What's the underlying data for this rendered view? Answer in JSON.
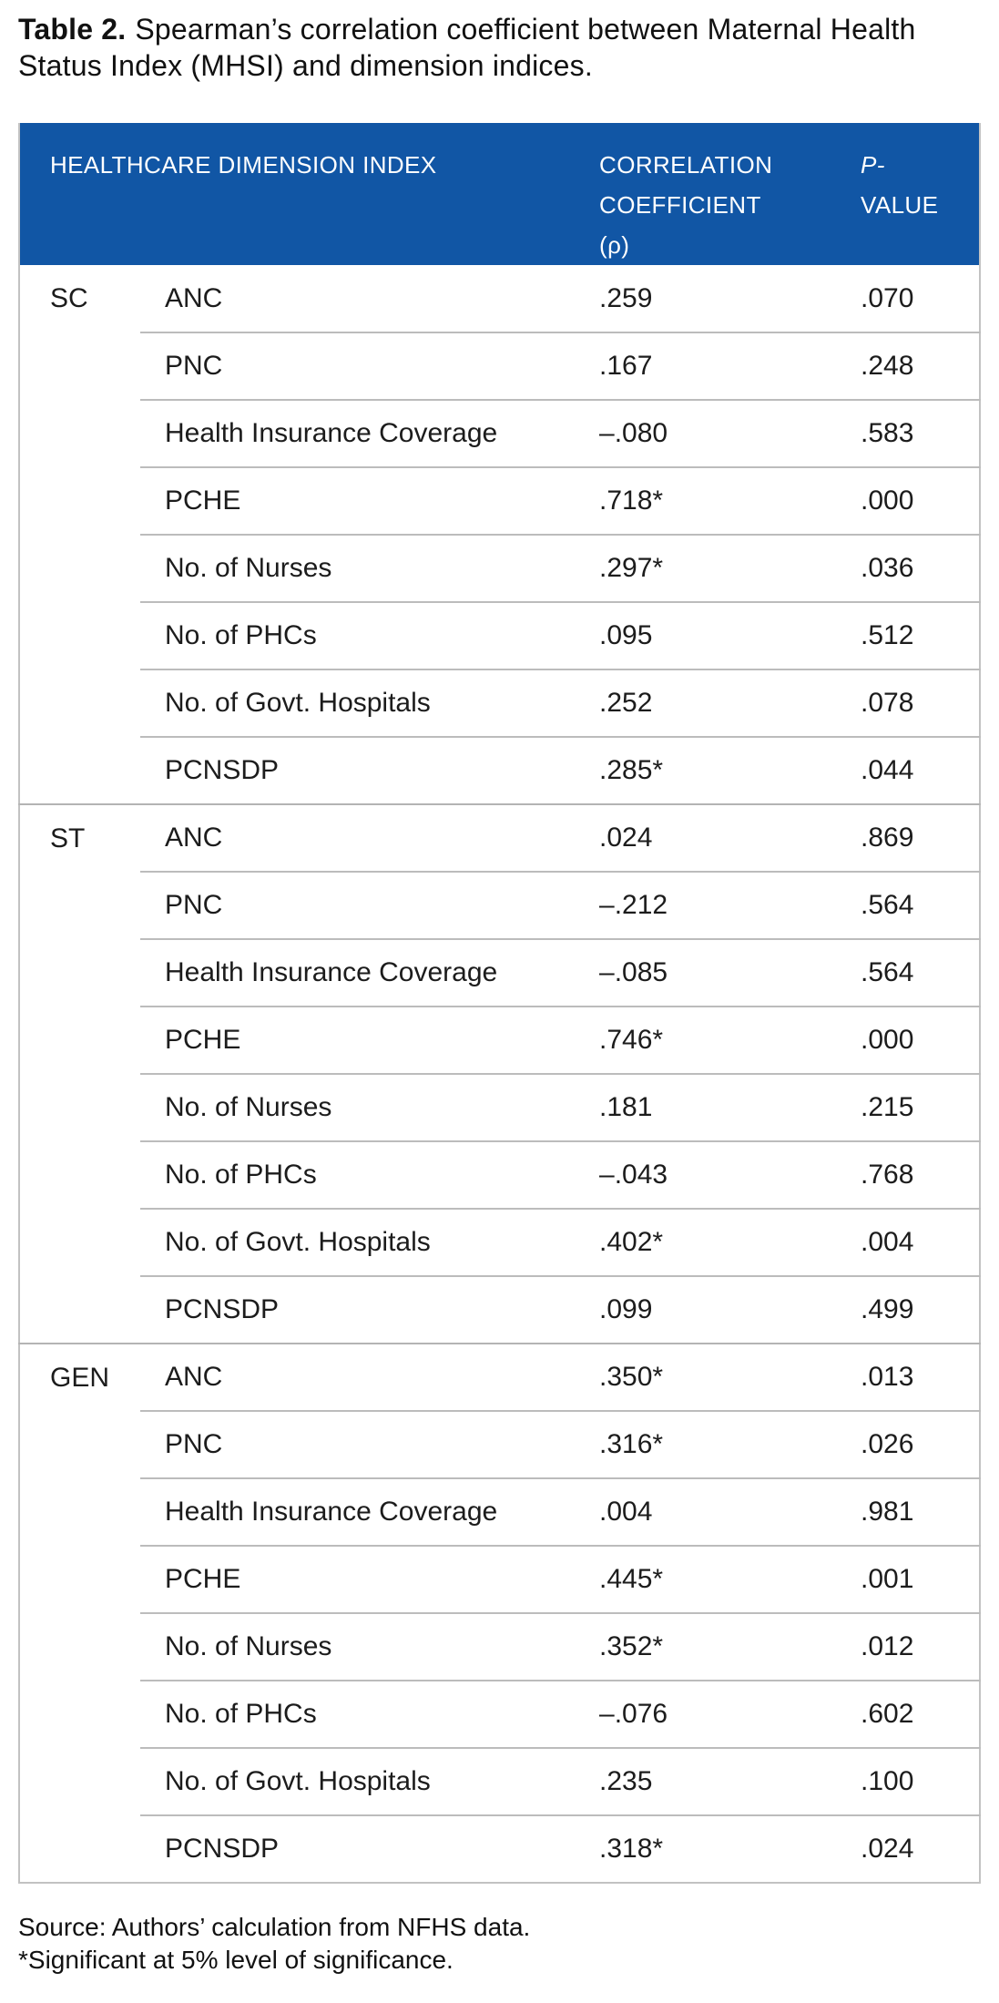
{
  "title": {
    "label": "Table 2.",
    "text": "Spearman’s correlation coefficient between Maternal Health Status Index (MHSI) and dimension indices."
  },
  "colors": {
    "header_bg": "#1156a5",
    "header_text": "#ffffff",
    "body_text": "#1c1c1c",
    "border": "#bcbcbc"
  },
  "table": {
    "header": {
      "dimension": "HEALTHCARE DIMENSION INDEX",
      "coefficient_line1": "CORRELATION",
      "coefficient_line2": "COEFFICIENT",
      "coefficient_line3": "(ρ)",
      "pvalue_line1": "P-",
      "pvalue_line2": "VALUE"
    },
    "groups": [
      {
        "label": "SC",
        "rows": [
          {
            "dimension": "ANC",
            "coefficient": ".259",
            "pvalue": ".070"
          },
          {
            "dimension": "PNC",
            "coefficient": ".167",
            "pvalue": ".248"
          },
          {
            "dimension": "Health Insurance Coverage",
            "coefficient": "–.080",
            "pvalue": ".583"
          },
          {
            "dimension": "PCHE",
            "coefficient": ".718*",
            "pvalue": ".000"
          },
          {
            "dimension": "No. of Nurses",
            "coefficient": ".297*",
            "pvalue": ".036"
          },
          {
            "dimension": "No. of PHCs",
            "coefficient": ".095",
            "pvalue": ".512"
          },
          {
            "dimension": "No. of Govt. Hospitals",
            "coefficient": ".252",
            "pvalue": ".078"
          },
          {
            "dimension": "PCNSDP",
            "coefficient": ".285*",
            "pvalue": ".044"
          }
        ]
      },
      {
        "label": "ST",
        "rows": [
          {
            "dimension": "ANC",
            "coefficient": ".024",
            "pvalue": ".869"
          },
          {
            "dimension": "PNC",
            "coefficient": "–.212",
            "pvalue": ".564"
          },
          {
            "dimension": "Health Insurance Coverage",
            "coefficient": "–.085",
            "pvalue": ".564"
          },
          {
            "dimension": "PCHE",
            "coefficient": ".746*",
            "pvalue": ".000"
          },
          {
            "dimension": "No. of Nurses",
            "coefficient": ".181",
            "pvalue": ".215"
          },
          {
            "dimension": "No. of PHCs",
            "coefficient": "–.043",
            "pvalue": ".768"
          },
          {
            "dimension": "No. of Govt. Hospitals",
            "coefficient": ".402*",
            "pvalue": ".004"
          },
          {
            "dimension": "PCNSDP",
            "coefficient": ".099",
            "pvalue": ".499"
          }
        ]
      },
      {
        "label": "GEN",
        "rows": [
          {
            "dimension": "ANC",
            "coefficient": ".350*",
            "pvalue": ".013"
          },
          {
            "dimension": "PNC",
            "coefficient": ".316*",
            "pvalue": ".026"
          },
          {
            "dimension": "Health Insurance Coverage",
            "coefficient": ".004",
            "pvalue": ".981"
          },
          {
            "dimension": "PCHE",
            "coefficient": ".445*",
            "pvalue": ".001"
          },
          {
            "dimension": "No. of Nurses",
            "coefficient": ".352*",
            "pvalue": ".012"
          },
          {
            "dimension": "No. of PHCs",
            "coefficient": "–.076",
            "pvalue": ".602"
          },
          {
            "dimension": "No. of Govt. Hospitals",
            "coefficient": ".235",
            "pvalue": ".100"
          },
          {
            "dimension": "PCNSDP",
            "coefficient": ".318*",
            "pvalue": ".024"
          }
        ]
      }
    ]
  },
  "footnotes": [
    "Source: Authors’ calculation from NFHS data.",
    "*Significant at 5% level of significance."
  ]
}
